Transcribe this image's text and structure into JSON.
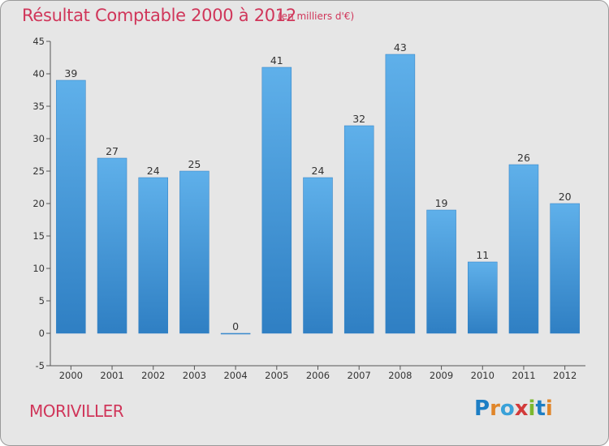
{
  "header": {
    "title": "Résultat Comptable 2000 à 2012",
    "subtitle": "(en milliers d'€)"
  },
  "footer": {
    "commune": "MORIVILLER",
    "logo_letters": [
      "P",
      "r",
      "o",
      "x",
      "i",
      "t",
      "i"
    ],
    "logo_colors": [
      "#1d7ec4",
      "#e0862a",
      "#3aa1d8",
      "#d23a3a",
      "#7cb82f",
      "#1d7ec4",
      "#e0862a"
    ]
  },
  "colors": {
    "bar_light": "#5fb0ea",
    "bar_dark": "#2f7fc3",
    "axis": "#555555",
    "title": "#d0365a"
  },
  "chart_data": {
    "type": "bar",
    "title": "Résultat Comptable 2000 à 2012",
    "subtitle": "(en milliers d'€)",
    "categories": [
      "2000",
      "2001",
      "2002",
      "2003",
      "2004",
      "2005",
      "2006",
      "2007",
      "2008",
      "2009",
      "2010",
      "2011",
      "2012"
    ],
    "values": [
      39,
      27,
      24,
      25,
      0,
      41,
      24,
      32,
      43,
      19,
      11,
      26,
      20
    ],
    "xlabel": "",
    "ylabel": "",
    "ylim": [
      -5,
      45
    ],
    "yticks": [
      -5,
      0,
      5,
      10,
      15,
      20,
      25,
      30,
      35,
      40,
      45
    ],
    "grid": false,
    "legend": "none"
  }
}
